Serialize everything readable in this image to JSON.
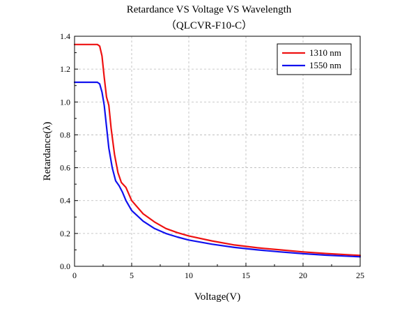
{
  "chart_data": {
    "type": "line",
    "title": "Retardance VS Voltage VS Wavelength",
    "subtitle": "（QLCVR-F10-C）",
    "xlabel": "Voltage(V)",
    "ylabel": "Retardance(λ)",
    "xlim": [
      0,
      25
    ],
    "ylim": [
      0,
      1.4
    ],
    "xticks": [
      "0",
      "5",
      "10",
      "15",
      "20",
      "25"
    ],
    "yticks": [
      "0.0",
      "0.2",
      "0.4",
      "0.6",
      "0.8",
      "1.0",
      "1.2",
      "1.4"
    ],
    "grid": true,
    "legend_position": "top-right",
    "series": [
      {
        "name": "1310 nm",
        "color": "#ee1111",
        "x": [
          0,
          1,
          2,
          2.2,
          2.4,
          2.6,
          2.8,
          3.0,
          3.2,
          3.5,
          3.8,
          4.1,
          4.5,
          5,
          6,
          7,
          8,
          9,
          10,
          12,
          14,
          16,
          18,
          20,
          22,
          25
        ],
        "y": [
          1.35,
          1.35,
          1.35,
          1.34,
          1.28,
          1.15,
          1.03,
          0.98,
          0.84,
          0.68,
          0.57,
          0.51,
          0.48,
          0.4,
          0.32,
          0.27,
          0.23,
          0.205,
          0.185,
          0.155,
          0.13,
          0.113,
          0.1,
          0.088,
          0.078,
          0.066
        ]
      },
      {
        "name": "1550 nm",
        "color": "#1111ee",
        "x": [
          0,
          1,
          2,
          2.2,
          2.4,
          2.6,
          2.8,
          3.0,
          3.3,
          3.6,
          3.9,
          4.2,
          4.5,
          5,
          6,
          7,
          8,
          9,
          10,
          12,
          14,
          16,
          18,
          20,
          22,
          25
        ],
        "y": [
          1.12,
          1.12,
          1.12,
          1.11,
          1.06,
          0.98,
          0.85,
          0.72,
          0.6,
          0.52,
          0.49,
          0.45,
          0.4,
          0.34,
          0.275,
          0.23,
          0.2,
          0.178,
          0.16,
          0.135,
          0.115,
          0.1,
          0.088,
          0.077,
          0.068,
          0.058
        ]
      }
    ]
  }
}
